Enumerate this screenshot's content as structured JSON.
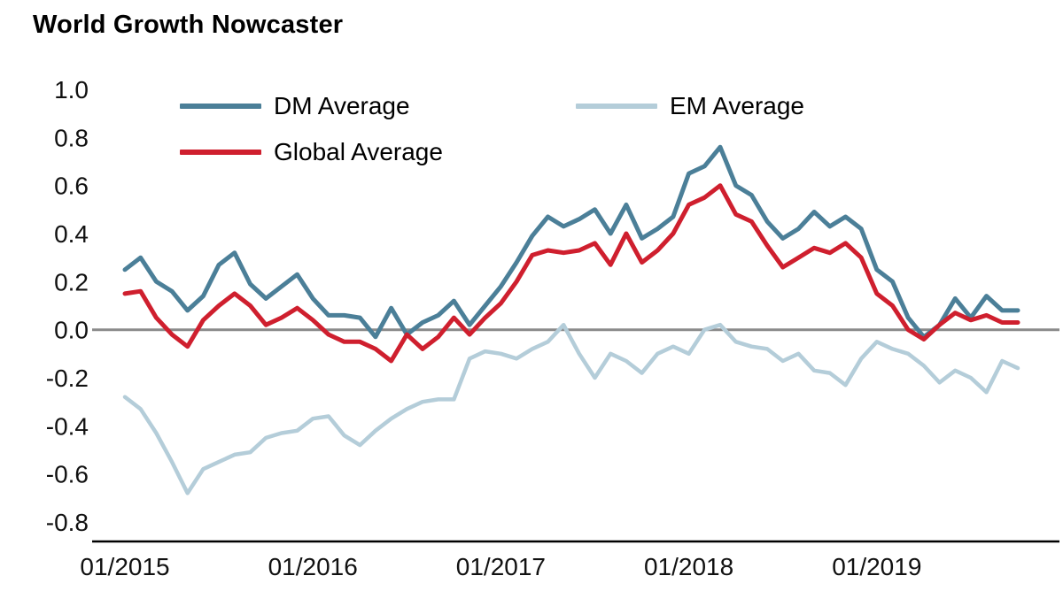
{
  "title": "World Growth Nowcaster",
  "colors": {
    "dm": "#4b7f98",
    "em": "#b4cdd9",
    "global": "#cf1f2e",
    "zero_line": "#8a8a8a",
    "axis": "#000000",
    "text": "#111111"
  },
  "chart_data": {
    "type": "line",
    "title": "World Growth Nowcaster",
    "xlabel": "",
    "ylabel": "",
    "ylim": [
      -0.8,
      1.0
    ],
    "grid": false,
    "zero_line": true,
    "legend_position": "top-inside",
    "ytick_labels": [
      "1.0",
      "0.8",
      "0.6",
      "0.4",
      "0.2",
      "0.0",
      "-0.2",
      "-0.4",
      "-0.6",
      "-0.8"
    ],
    "xticks": [
      "01/2015",
      "01/2016",
      "01/2017",
      "01/2018",
      "01/2019"
    ],
    "x": [
      "01/2015",
      "02/2015",
      "03/2015",
      "04/2015",
      "05/2015",
      "06/2015",
      "07/2015",
      "08/2015",
      "09/2015",
      "10/2015",
      "11/2015",
      "12/2015",
      "01/2016",
      "02/2016",
      "03/2016",
      "04/2016",
      "05/2016",
      "06/2016",
      "07/2016",
      "08/2016",
      "09/2016",
      "10/2016",
      "11/2016",
      "12/2016",
      "01/2017",
      "02/2017",
      "03/2017",
      "04/2017",
      "05/2017",
      "06/2017",
      "07/2017",
      "08/2017",
      "09/2017",
      "10/2017",
      "11/2017",
      "12/2017",
      "01/2018",
      "02/2018",
      "03/2018",
      "04/2018",
      "05/2018",
      "06/2018",
      "07/2018",
      "08/2018",
      "09/2018",
      "10/2018",
      "11/2018",
      "12/2018",
      "01/2019",
      "02/2019",
      "03/2019",
      "04/2019",
      "05/2019",
      "06/2019",
      "07/2019",
      "08/2019",
      "09/2019",
      "10/2019"
    ],
    "series": [
      {
        "name": "DM Average",
        "color": "#4b7f98",
        "stroke_width": 5,
        "values": [
          0.25,
          0.3,
          0.2,
          0.16,
          0.08,
          0.14,
          0.27,
          0.32,
          0.19,
          0.13,
          0.18,
          0.23,
          0.13,
          0.06,
          0.06,
          0.05,
          -0.03,
          0.09,
          -0.02,
          0.03,
          0.06,
          0.12,
          0.02,
          0.1,
          0.18,
          0.28,
          0.39,
          0.47,
          0.43,
          0.46,
          0.5,
          0.4,
          0.52,
          0.38,
          0.42,
          0.47,
          0.65,
          0.68,
          0.76,
          0.6,
          0.56,
          0.45,
          0.38,
          0.42,
          0.49,
          0.43,
          0.47,
          0.42,
          0.25,
          0.2,
          0.05,
          -0.03,
          0.02,
          0.13,
          0.05,
          0.14,
          0.08,
          0.08
        ]
      },
      {
        "name": "EM Average",
        "color": "#b4cdd9",
        "stroke_width": 4.5,
        "values": [
          -0.28,
          -0.33,
          -0.43,
          -0.55,
          -0.68,
          -0.58,
          -0.55,
          -0.52,
          -0.51,
          -0.45,
          -0.43,
          -0.42,
          -0.37,
          -0.36,
          -0.44,
          -0.48,
          -0.42,
          -0.37,
          -0.33,
          -0.3,
          -0.29,
          -0.29,
          -0.12,
          -0.09,
          -0.1,
          -0.12,
          -0.08,
          -0.05,
          0.02,
          -0.1,
          -0.2,
          -0.1,
          -0.13,
          -0.18,
          -0.1,
          -0.07,
          -0.1,
          0.0,
          0.02,
          -0.05,
          -0.07,
          -0.08,
          -0.13,
          -0.1,
          -0.17,
          -0.18,
          -0.23,
          -0.12,
          -0.05,
          -0.08,
          -0.1,
          -0.15,
          -0.22,
          -0.17,
          -0.2,
          -0.26,
          -0.13,
          -0.16
        ]
      },
      {
        "name": "Global Average",
        "color": "#cf1f2e",
        "stroke_width": 5,
        "values": [
          0.15,
          0.16,
          0.05,
          -0.02,
          -0.07,
          0.04,
          0.1,
          0.15,
          0.1,
          0.02,
          0.05,
          0.09,
          0.04,
          -0.02,
          -0.05,
          -0.05,
          -0.08,
          -0.13,
          -0.02,
          -0.08,
          -0.03,
          0.05,
          -0.02,
          0.05,
          0.11,
          0.2,
          0.31,
          0.33,
          0.32,
          0.33,
          0.36,
          0.27,
          0.4,
          0.28,
          0.33,
          0.4,
          0.52,
          0.55,
          0.6,
          0.48,
          0.45,
          0.35,
          0.26,
          0.3,
          0.34,
          0.32,
          0.36,
          0.3,
          0.15,
          0.1,
          0.0,
          -0.04,
          0.02,
          0.07,
          0.04,
          0.06,
          0.03,
          0.03
        ]
      }
    ],
    "legend_order": [
      "DM Average",
      "EM Average",
      "Global Average"
    ]
  }
}
